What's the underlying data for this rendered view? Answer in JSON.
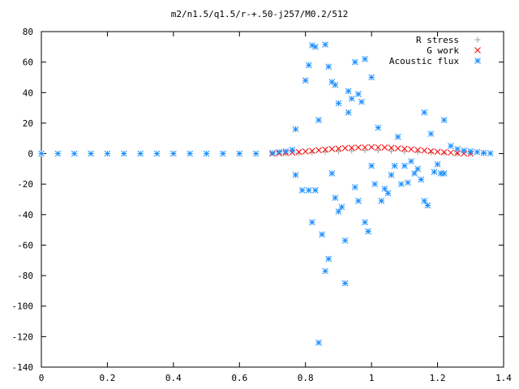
{
  "chart_data": {
    "type": "scatter",
    "title": "m2/n1.5/q1.5/r-+.50-j257/M0.2/512",
    "xlabel": "",
    "ylabel": "",
    "xlim": [
      0,
      1.4
    ],
    "ylim": [
      -140,
      80
    ],
    "x_ticks": [
      {
        "value": 0,
        "label": "0"
      },
      {
        "value": 0.2,
        "label": "0.2"
      },
      {
        "value": 0.4,
        "label": "0.4"
      },
      {
        "value": 0.6,
        "label": "0.6"
      },
      {
        "value": 0.8,
        "label": "0.8"
      },
      {
        "value": 1.0,
        "label": "1"
      },
      {
        "value": 1.2,
        "label": "1.2"
      },
      {
        "value": 1.4,
        "label": "1.4"
      }
    ],
    "y_ticks": [
      {
        "value": 80,
        "label": "80"
      },
      {
        "value": 60,
        "label": "60"
      },
      {
        "value": 40,
        "label": "40"
      },
      {
        "value": 20,
        "label": "20"
      },
      {
        "value": 0,
        "label": "0"
      },
      {
        "value": -20,
        "label": "-20"
      },
      {
        "value": -40,
        "label": "-40"
      },
      {
        "value": -60,
        "label": "-60"
      },
      {
        "value": -80,
        "label": "-80"
      },
      {
        "value": -100,
        "label": "-100"
      },
      {
        "value": -120,
        "label": "-120"
      },
      {
        "value": -140,
        "label": "-140"
      }
    ],
    "grid": false,
    "legend_position": "top-right",
    "series": [
      {
        "name": "R stress",
        "marker": "plus",
        "color": "#a0a0a0",
        "points": [
          [
            0.7,
            0.0
          ],
          [
            0.74,
            0.1
          ],
          [
            0.78,
            0.3
          ],
          [
            0.82,
            0.6
          ],
          [
            0.86,
            1.0
          ],
          [
            0.9,
            1.4
          ],
          [
            0.94,
            1.8
          ],
          [
            0.98,
            2.1
          ],
          [
            1.02,
            2.0
          ],
          [
            1.06,
            1.7
          ],
          [
            1.1,
            1.3
          ],
          [
            1.14,
            0.9
          ],
          [
            1.18,
            0.6
          ],
          [
            1.22,
            0.3
          ],
          [
            1.26,
            0.1
          ],
          [
            1.3,
            0.0
          ],
          [
            1.34,
            0.0
          ]
        ]
      },
      {
        "name": "G work",
        "marker": "cross",
        "color": "#ff0000",
        "points": [
          [
            0.7,
            0.0
          ],
          [
            0.72,
            0.2
          ],
          [
            0.74,
            0.4
          ],
          [
            0.76,
            0.7
          ],
          [
            0.78,
            1.0
          ],
          [
            0.8,
            1.4
          ],
          [
            0.82,
            1.8
          ],
          [
            0.84,
            2.2
          ],
          [
            0.86,
            2.6
          ],
          [
            0.88,
            3.0
          ],
          [
            0.9,
            3.3
          ],
          [
            0.92,
            3.6
          ],
          [
            0.94,
            3.8
          ],
          [
            0.96,
            4.0
          ],
          [
            0.98,
            4.1
          ],
          [
            1.0,
            4.2
          ],
          [
            1.02,
            4.1
          ],
          [
            1.04,
            4.0
          ],
          [
            1.06,
            3.8
          ],
          [
            1.08,
            3.5
          ],
          [
            1.1,
            3.2
          ],
          [
            1.12,
            2.8
          ],
          [
            1.14,
            2.4
          ],
          [
            1.16,
            2.0
          ],
          [
            1.18,
            1.6
          ],
          [
            1.2,
            1.2
          ],
          [
            1.22,
            0.9
          ],
          [
            1.24,
            0.6
          ],
          [
            1.26,
            0.3
          ],
          [
            1.28,
            0.1
          ],
          [
            1.3,
            0.0
          ]
        ]
      },
      {
        "name": "Acoustic flux",
        "marker": "star",
        "color": "#1e90ff",
        "points": [
          [
            0.0,
            0.0
          ],
          [
            0.05,
            0.0
          ],
          [
            0.1,
            0.0
          ],
          [
            0.15,
            0.0
          ],
          [
            0.2,
            0.0
          ],
          [
            0.25,
            0.0
          ],
          [
            0.3,
            0.0
          ],
          [
            0.35,
            0.0
          ],
          [
            0.4,
            0.0
          ],
          [
            0.45,
            0.0
          ],
          [
            0.5,
            0.0
          ],
          [
            0.55,
            0.0
          ],
          [
            0.6,
            0.0
          ],
          [
            0.65,
            0.0
          ],
          [
            0.7,
            0.4
          ],
          [
            0.72,
            1.0
          ],
          [
            0.74,
            1.5
          ],
          [
            0.76,
            2.5
          ],
          [
            0.77,
            16.0
          ],
          [
            0.77,
            -14.0
          ],
          [
            0.79,
            -24.0
          ],
          [
            0.8,
            48.0
          ],
          [
            0.81,
            58.0
          ],
          [
            0.81,
            -24.0
          ],
          [
            0.82,
            -45.0
          ],
          [
            0.82,
            71.0
          ],
          [
            0.83,
            -24.0
          ],
          [
            0.83,
            70.0
          ],
          [
            0.84,
            22.0
          ],
          [
            0.84,
            -124.0
          ],
          [
            0.85,
            -53.0
          ],
          [
            0.86,
            71.5
          ],
          [
            0.86,
            -77.0
          ],
          [
            0.87,
            -69.0
          ],
          [
            0.87,
            57.0
          ],
          [
            0.88,
            47.0
          ],
          [
            0.88,
            -13.0
          ],
          [
            0.89,
            45.0
          ],
          [
            0.89,
            -29.0
          ],
          [
            0.9,
            -38.0
          ],
          [
            0.9,
            33.0
          ],
          [
            0.91,
            -35.0
          ],
          [
            0.92,
            -85.0
          ],
          [
            0.92,
            -57.0
          ],
          [
            0.93,
            41.0
          ],
          [
            0.93,
            27.0
          ],
          [
            0.94,
            36.0
          ],
          [
            0.95,
            60.0
          ],
          [
            0.95,
            -22.0
          ],
          [
            0.96,
            39.0
          ],
          [
            0.96,
            -31.0
          ],
          [
            0.97,
            34.0
          ],
          [
            0.98,
            62.0
          ],
          [
            0.98,
            -45.0
          ],
          [
            0.99,
            -51.0
          ],
          [
            1.0,
            50.0
          ],
          [
            1.0,
            -8.0
          ],
          [
            1.01,
            -20.0
          ],
          [
            1.02,
            17.0
          ],
          [
            1.03,
            -31.0
          ],
          [
            1.04,
            -23.0
          ],
          [
            1.05,
            -26.0
          ],
          [
            1.06,
            -14.0
          ],
          [
            1.07,
            -8.0
          ],
          [
            1.08,
            11.0
          ],
          [
            1.09,
            -20.0
          ],
          [
            1.1,
            -8.0
          ],
          [
            1.11,
            -19.0
          ],
          [
            1.12,
            -5.0
          ],
          [
            1.13,
            -13.0
          ],
          [
            1.14,
            -10.0
          ],
          [
            1.15,
            -17.0
          ],
          [
            1.16,
            27.0
          ],
          [
            1.16,
            -31.0
          ],
          [
            1.17,
            -34.0
          ],
          [
            1.18,
            13.0
          ],
          [
            1.19,
            -12.0
          ],
          [
            1.2,
            -7.0
          ],
          [
            1.21,
            -13.0
          ],
          [
            1.22,
            -13.0
          ],
          [
            1.22,
            22.0
          ],
          [
            1.24,
            5.0
          ],
          [
            1.26,
            3.0
          ],
          [
            1.28,
            2.0
          ],
          [
            1.3,
            1.5
          ],
          [
            1.32,
            1.0
          ],
          [
            1.34,
            0.5
          ],
          [
            1.36,
            0.2
          ]
        ]
      }
    ]
  }
}
